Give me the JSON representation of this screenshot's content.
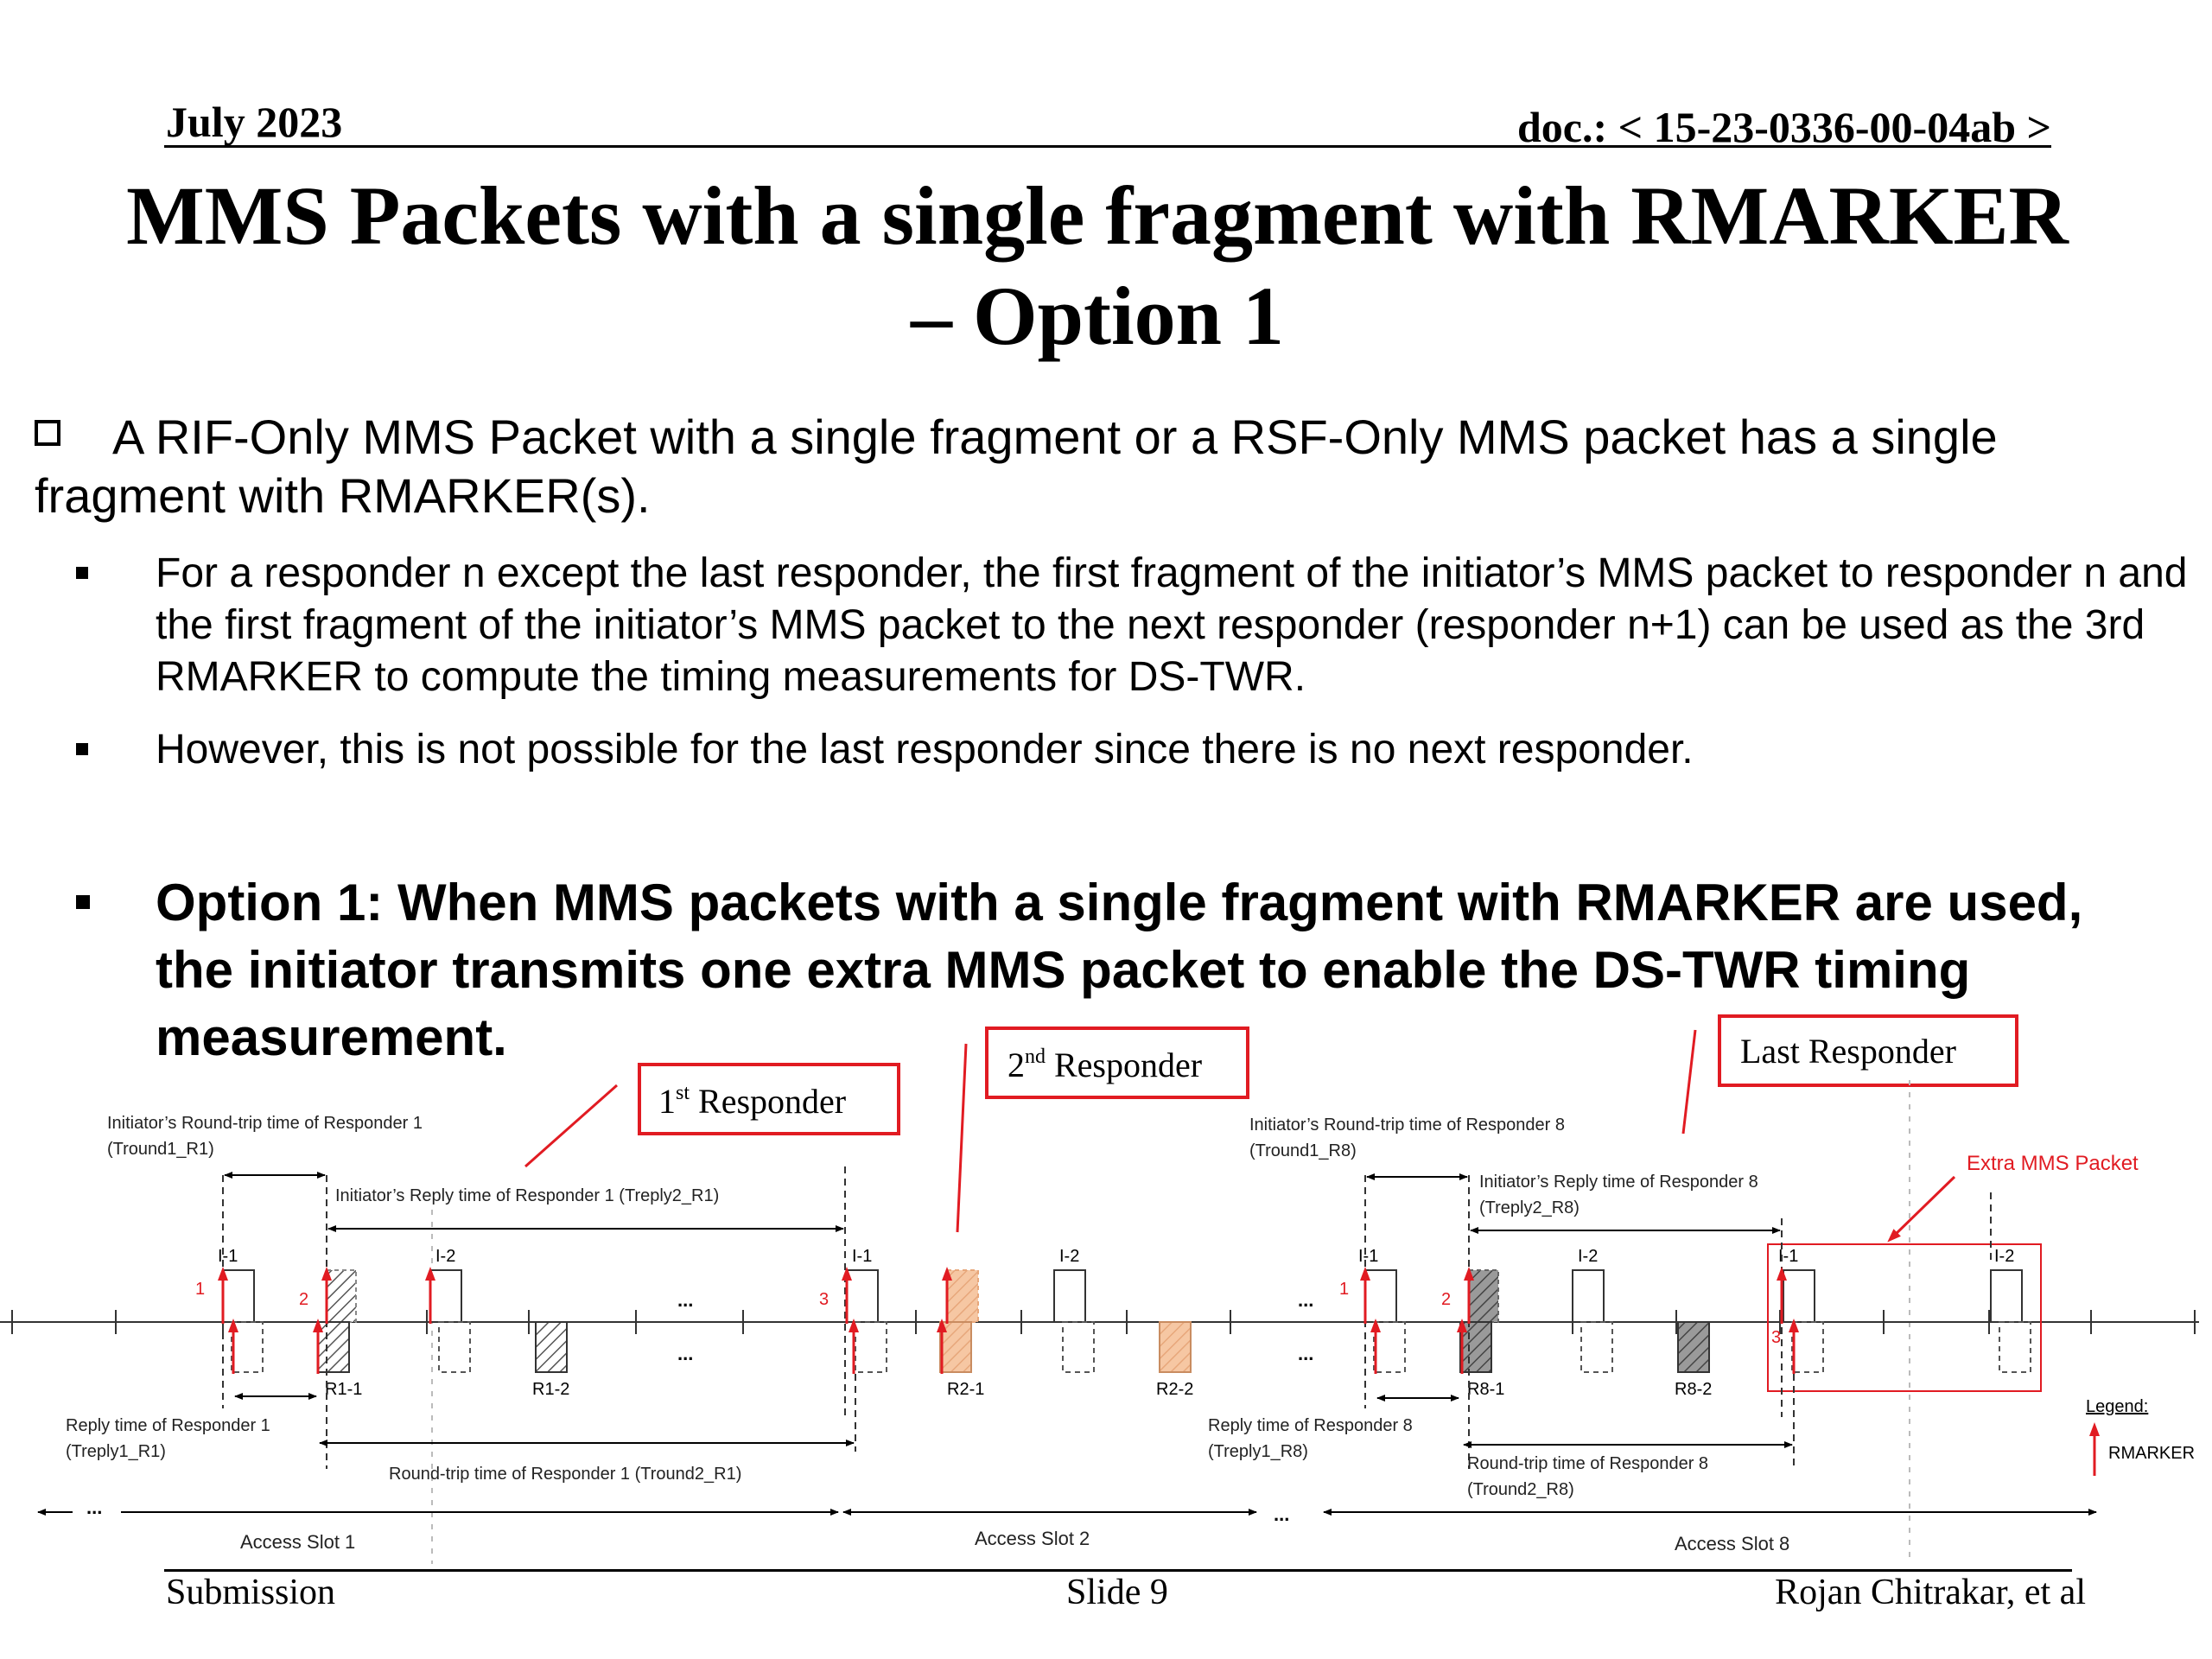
{
  "header": {
    "date": "July 2023",
    "doc": "doc.: < 15-23-0336-00-04ab >"
  },
  "title": {
    "line1": "MMS Packets with a single fragment with RMARKER",
    "line2": "– Option 1"
  },
  "body": {
    "main_bullet": "A RIF-Only MMS Packet with a single fragment or a RSF-Only MMS packet has a single fragment with RMARKER(s).",
    "sub_bullets": [
      "For a responder n except the last responder, the first fragment of the initiator’s MMS packet to responder n and the first fragment of the initiator’s MMS packet to the next responder (responder n+1) can be used as the 3rd RMARKER to compute the timing measurements for DS-TWR.",
      "However, this is not possible for the last responder since there is no next responder."
    ],
    "option": "Option 1: When MMS packets with a single fragment with RMARKER are used, the initiator transmits one extra MMS packet to enable the DS-TWR timing measurement."
  },
  "diagram": {
    "callouts": {
      "r1_num": "1",
      "r1_sup": "st",
      "r1_rest": " Responder",
      "r2_num": "2",
      "r2_sup": "nd",
      "r2_rest": " Responder",
      "last": "Last Responder"
    },
    "labels": {
      "tround1_r1_a": "Initiator’s Round-trip time of Responder 1",
      "tround1_r1_b": "(Tround1_R1)",
      "treply2_r1": "Initiator’s Reply time of Responder 1 (Treply2_R1)",
      "treply1_r1_a": "Reply time of Responder 1",
      "treply1_r1_b": "(Treply1_R1)",
      "tround2_r1": "Round-trip time of Responder 1 (Tround2_R1)",
      "tround1_r8_a": "Initiator’s Round-trip time of Responder 8",
      "tround1_r8_b": "(Tround1_R8)",
      "treply2_r8_a": "Initiator’s Reply time of Responder 8",
      "treply2_r8_b": "(Treply2_R8)",
      "treply1_r8_a": "Reply time of Responder 8",
      "treply1_r8_b": "(Treply1_R8)",
      "tround2_r8_a": "Round-trip time of Responder 8",
      "tround2_r8_b": "(Tround2_R8)",
      "extra": "Extra MMS Packet",
      "legend": "Legend:",
      "rmarker": "RMARKER",
      "slot1": "Access Slot 1",
      "slot2": "Access Slot 2",
      "slot8": "Access Slot 8",
      "ellipsis": "..."
    },
    "packets": {
      "i1": "I-1",
      "i2": "I-2",
      "r1_1": "R1-1",
      "r1_2": "R1-2",
      "r2_1": "R2-1",
      "r2_2": "R2-2",
      "r8_1": "R8-1",
      "r8_2": "R8-2"
    },
    "markers": {
      "one": "1",
      "two": "2",
      "three": "3"
    },
    "colors": {
      "callout": "#e11b22",
      "orange_fill": "#f6c7a3",
      "grey_fill": "#9a9a9a"
    }
  },
  "footer": {
    "left": "Submission",
    "center": "Slide 9",
    "right": "Rojan Chitrakar, et al"
  }
}
